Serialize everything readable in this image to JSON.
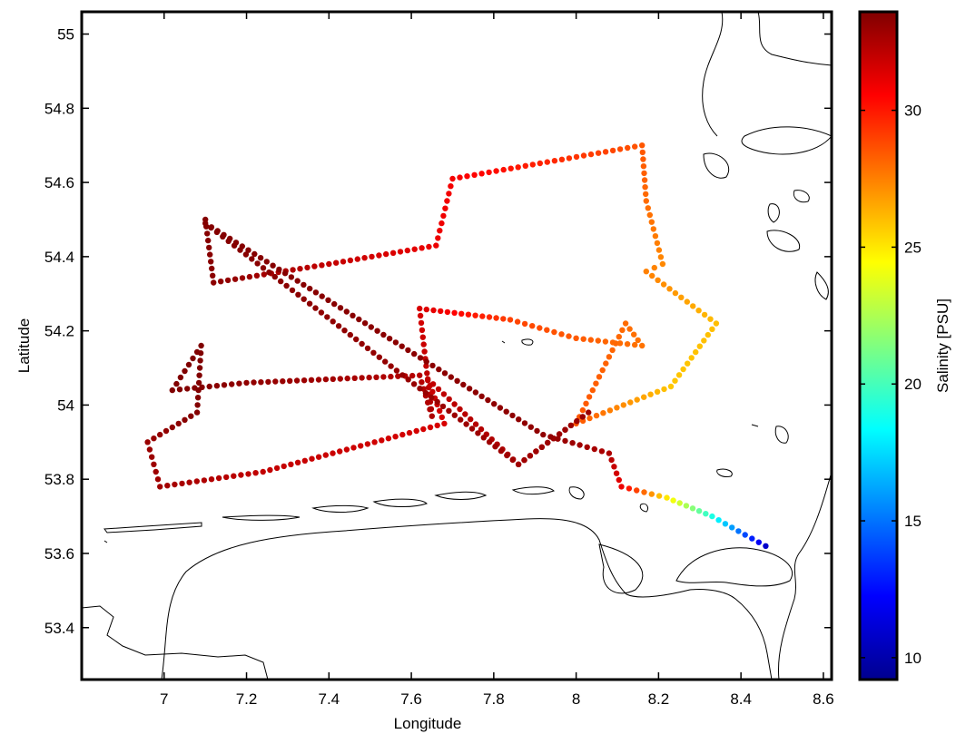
{
  "chart_data": {
    "type": "scatter",
    "title": "",
    "xlabel": "Longitude",
    "ylabel": "Latitude",
    "xlim": [
      6.8,
      8.62
    ],
    "ylim": [
      53.26,
      55.06
    ],
    "xticks": [
      7,
      7.2,
      7.4,
      7.6,
      7.8,
      8,
      8.2,
      8.4,
      8.6
    ],
    "xtick_labels": [
      "7",
      "7.2",
      "7.4",
      "7.6",
      "7.8",
      "8",
      "8.2",
      "8.4",
      "8.6"
    ],
    "yticks": [
      53.4,
      53.6,
      53.8,
      54,
      54.2,
      54.4,
      54.6,
      54.8,
      55
    ],
    "ytick_labels": [
      "53.4",
      "53.6",
      "53.8",
      "54",
      "54.2",
      "54.4",
      "54.6",
      "54.8",
      "55"
    ],
    "grid": false,
    "colorbar": {
      "label": "Salinity [PSU]",
      "clim": [
        9.2,
        33.6
      ],
      "ticks": [
        10,
        15,
        20,
        25,
        30
      ],
      "tick_labels": [
        "10",
        "15",
        "20",
        "25",
        "30"
      ],
      "colormap": "jet"
    },
    "cruise_track": [
      {
        "lon": 7.1,
        "lat": 54.5,
        "sal": 33.5
      },
      {
        "lon": 7.12,
        "lat": 54.33,
        "sal": 33.3
      },
      {
        "lon": 7.4,
        "lat": 54.38,
        "sal": 32.0
      },
      {
        "lon": 7.66,
        "lat": 54.43,
        "sal": 31.0
      },
      {
        "lon": 7.7,
        "lat": 54.61,
        "sal": 30.8
      },
      {
        "lon": 8.16,
        "lat": 54.7,
        "sal": 28.5
      },
      {
        "lon": 8.17,
        "lat": 54.55,
        "sal": 28.0
      },
      {
        "lon": 8.21,
        "lat": 54.38,
        "sal": 27.3
      },
      {
        "lon": 8.17,
        "lat": 54.36,
        "sal": 27.5
      },
      {
        "lon": 8.34,
        "lat": 54.22,
        "sal": 26.0
      },
      {
        "lon": 8.23,
        "lat": 54.05,
        "sal": 25.8
      },
      {
        "lon": 8.0,
        "lat": 53.95,
        "sal": 28.5
      },
      {
        "lon": 8.12,
        "lat": 54.22,
        "sal": 28.0
      },
      {
        "lon": 8.16,
        "lat": 54.16,
        "sal": 27.8
      },
      {
        "lon": 8.0,
        "lat": 54.18,
        "sal": 28.4
      },
      {
        "lon": 7.84,
        "lat": 54.23,
        "sal": 29.0
      },
      {
        "lon": 7.62,
        "lat": 54.26,
        "sal": 31.5
      },
      {
        "lon": 7.65,
        "lat": 53.97,
        "sal": 32.5
      },
      {
        "lon": 7.62,
        "lat": 54.08,
        "sal": 32.3
      },
      {
        "lon": 7.2,
        "lat": 54.06,
        "sal": 33.2
      },
      {
        "lon": 7.02,
        "lat": 54.04,
        "sal": 33.6
      },
      {
        "lon": 7.09,
        "lat": 54.16,
        "sal": 33.6
      },
      {
        "lon": 7.08,
        "lat": 53.98,
        "sal": 33.5
      },
      {
        "lon": 6.96,
        "lat": 53.9,
        "sal": 33.0
      },
      {
        "lon": 6.99,
        "lat": 53.78,
        "sal": 32.8
      },
      {
        "lon": 7.24,
        "lat": 53.82,
        "sal": 32.0
      },
      {
        "lon": 7.68,
        "lat": 53.95,
        "sal": 31.5
      },
      {
        "lon": 7.64,
        "lat": 54.07,
        "sal": 32.0
      },
      {
        "lon": 7.86,
        "lat": 53.84,
        "sal": 32.6
      },
      {
        "lon": 8.03,
        "lat": 53.98,
        "sal": 33.0
      },
      {
        "lon": 7.86,
        "lat": 53.84,
        "sal": 32.8
      },
      {
        "lon": 7.1,
        "lat": 54.49,
        "sal": 33.5
      },
      {
        "lon": 7.92,
        "lat": 53.92,
        "sal": 33.2
      },
      {
        "lon": 8.08,
        "lat": 53.87,
        "sal": 32.5
      },
      {
        "lon": 8.11,
        "lat": 53.78,
        "sal": 31.0
      },
      {
        "lon": 8.22,
        "lat": 53.75,
        "sal": 25.0
      },
      {
        "lon": 8.33,
        "lat": 53.7,
        "sal": 19.0
      },
      {
        "lon": 8.41,
        "lat": 53.65,
        "sal": 14.0
      },
      {
        "lon": 8.46,
        "lat": 53.62,
        "sal": 11.0
      }
    ]
  }
}
